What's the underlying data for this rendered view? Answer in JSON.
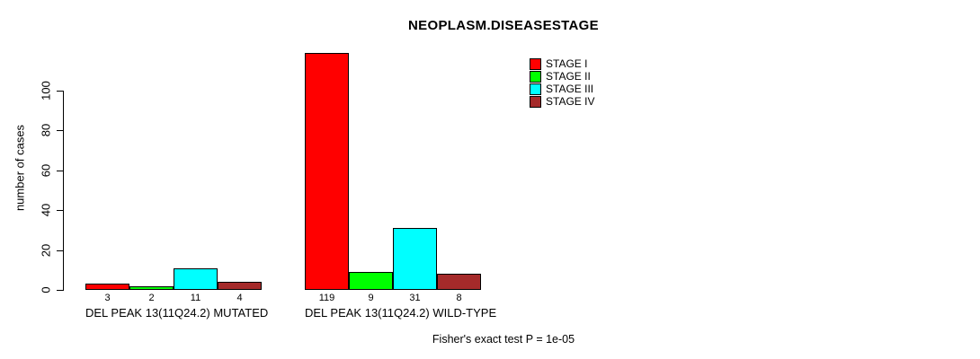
{
  "chart_data": {
    "type": "bar",
    "title": "NEOPLASM.DISEASESTAGE",
    "ylabel": "number of cases",
    "xlabel": "",
    "ylim": [
      0,
      100
    ],
    "yticks": [
      0,
      20,
      40,
      60,
      80,
      100
    ],
    "grid": false,
    "legend_position": "top-right",
    "background": "#FFFFFF",
    "categories": [
      "DEL PEAK 13(11Q24.2) MUTATED",
      "DEL PEAK 13(11Q24.2) WILD-TYPE"
    ],
    "series": [
      {
        "name": "STAGE I",
        "color": "#FF0000",
        "values": [
          3,
          119
        ]
      },
      {
        "name": "STAGE II",
        "color": "#00FF00",
        "values": [
          2,
          9
        ]
      },
      {
        "name": "STAGE III",
        "color": "#00FFFF",
        "values": [
          11,
          31
        ]
      },
      {
        "name": "STAGE IV",
        "color": "#A52A2A",
        "values": [
          4,
          8
        ]
      }
    ],
    "bar_value_labels": true,
    "annotation": "Fisher's exact test P = 1e-05"
  }
}
